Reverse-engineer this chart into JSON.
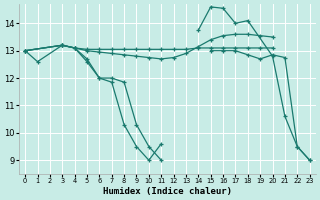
{
  "background_color": "#c8ece6",
  "grid_color": "#ffffff",
  "line_color": "#1a7a6e",
  "xlabel": "Humidex (Indice chaleur)",
  "ylim": [
    8.5,
    14.7
  ],
  "xlim": [
    -0.5,
    23.5
  ],
  "yticks": [
    9,
    10,
    11,
    12,
    13,
    14
  ],
  "xticks": [
    0,
    1,
    2,
    3,
    4,
    5,
    6,
    7,
    8,
    9,
    10,
    11,
    12,
    13,
    14,
    15,
    16,
    17,
    18,
    19,
    20,
    21,
    22,
    23
  ],
  "series1a": {
    "x": [
      0,
      1,
      3,
      4,
      5,
      6,
      7,
      8,
      9,
      10,
      11
    ],
    "y": [
      13.0,
      12.6,
      13.2,
      13.1,
      12.7,
      12.0,
      11.85,
      10.3,
      9.5,
      9.0,
      9.6
    ]
  },
  "series1b": {
    "x": [
      14,
      15,
      16,
      17,
      18,
      20,
      21,
      22,
      23
    ],
    "y": [
      13.75,
      14.6,
      14.55,
      14.0,
      14.1,
      12.8,
      10.6,
      9.5,
      9.0
    ]
  },
  "series2a": {
    "x": [
      0,
      3,
      4,
      5,
      6,
      7,
      8,
      9,
      10,
      11
    ],
    "y": [
      13.0,
      13.2,
      13.1,
      12.6,
      12.0,
      12.0,
      11.85,
      10.3,
      9.5,
      9.0
    ]
  },
  "series2b": {
    "x": [
      15,
      16,
      17,
      18,
      19,
      20,
      21,
      22,
      23
    ],
    "y": [
      13.0,
      13.0,
      13.0,
      12.85,
      12.7,
      12.85,
      12.75,
      9.5,
      9.0
    ]
  },
  "series3": {
    "x": [
      0,
      3,
      4,
      5,
      6,
      7,
      8,
      9,
      10,
      11,
      12,
      13,
      14,
      15,
      16,
      17,
      18,
      19,
      20
    ],
    "y": [
      13.0,
      13.2,
      13.1,
      13.0,
      12.95,
      12.9,
      12.85,
      12.8,
      12.75,
      12.7,
      12.75,
      12.9,
      13.15,
      13.4,
      13.55,
      13.6,
      13.6,
      13.55,
      13.5
    ]
  },
  "series4": {
    "x": [
      0,
      3,
      4,
      5,
      6,
      7,
      8,
      9,
      10,
      11,
      12,
      13,
      14,
      15,
      16,
      17,
      18,
      19,
      20
    ],
    "y": [
      13.0,
      13.2,
      13.1,
      13.05,
      13.05,
      13.05,
      13.05,
      13.05,
      13.05,
      13.05,
      13.05,
      13.05,
      13.1,
      13.1,
      13.1,
      13.1,
      13.1,
      13.1,
      13.1
    ]
  }
}
